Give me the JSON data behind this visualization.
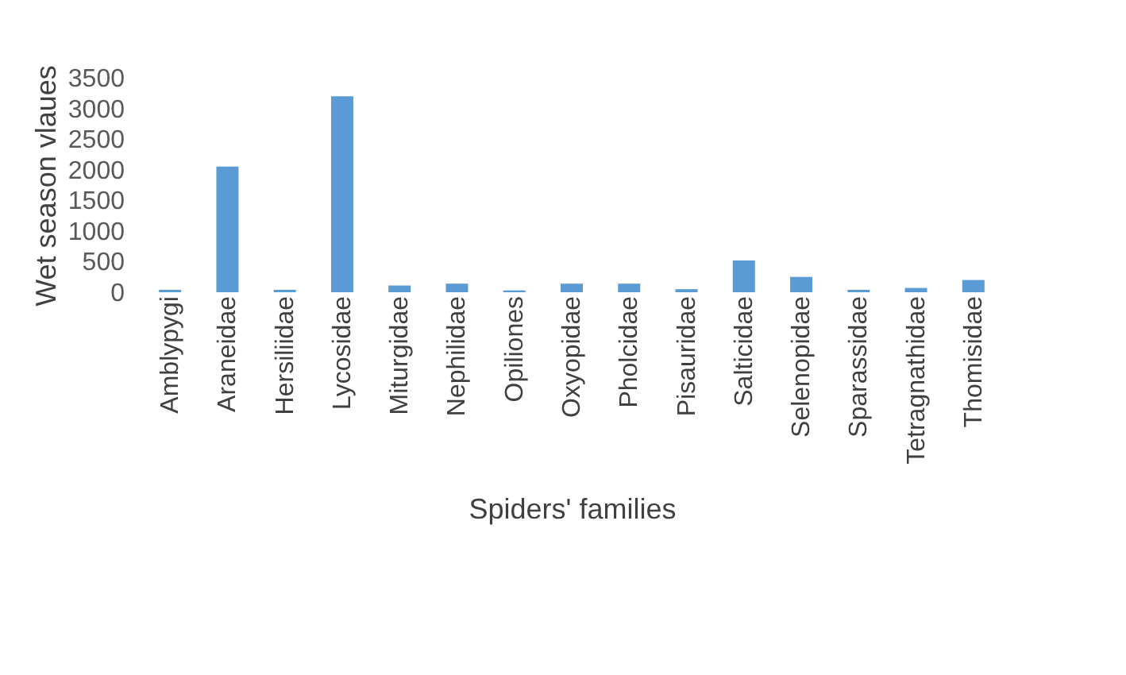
{
  "chart_data": {
    "type": "bar",
    "xlabel": "Spiders' families",
    "ylabel": "Wet season vlaues",
    "categories": [
      "Amblypygi",
      "Araneidae",
      "Hersiliidae",
      "Lycosidae",
      "Miturgidae",
      "Nephilidae",
      "Opiliones",
      "Oxyopidae",
      "Pholcidae",
      "Pisauridae",
      "Salticidae",
      "Selenopidae",
      "Sparassidae",
      "Tetragnathidae",
      "Thomisidae"
    ],
    "values": [
      40,
      2050,
      40,
      3200,
      110,
      140,
      30,
      140,
      140,
      50,
      520,
      250,
      40,
      70,
      200
    ],
    "color": "#5b9bd5",
    "ylim": [
      0,
      3500
    ],
    "yticks": [
      0,
      500,
      1000,
      1500,
      2000,
      2500,
      3000,
      3500
    ],
    "grid": false
  }
}
